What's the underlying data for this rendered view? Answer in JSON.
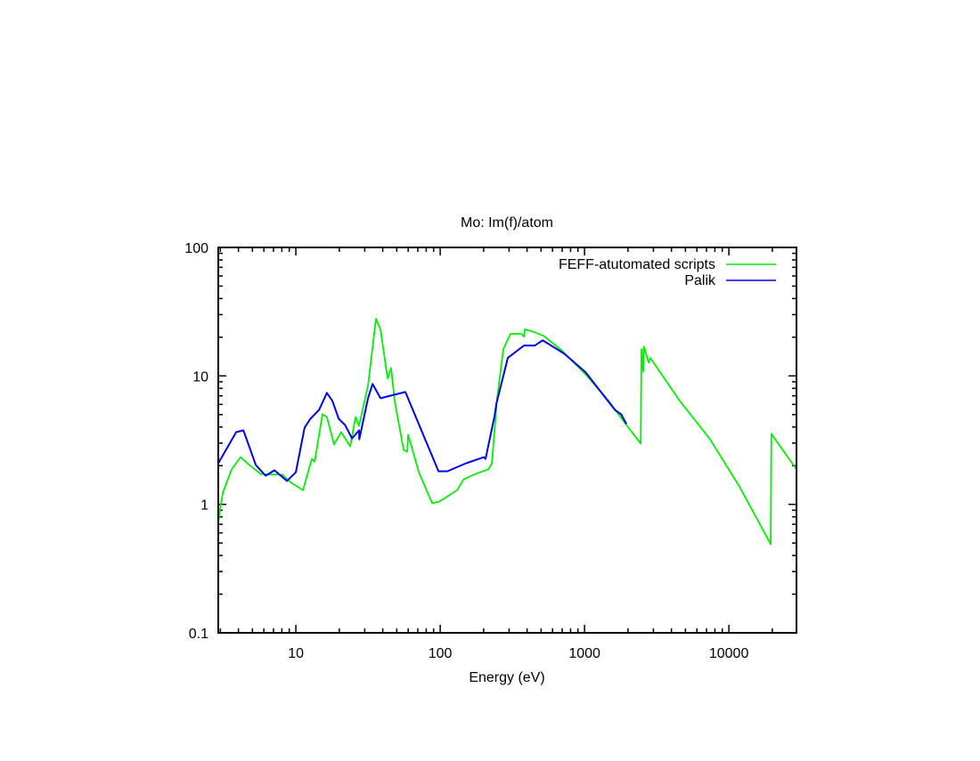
{
  "chart_data": {
    "type": "line",
    "title": "Mo: Im(f)/atom",
    "xlabel": "Energy (eV)",
    "ylabel": "",
    "xscale": "log",
    "yscale": "log",
    "xlim": [
      2.9,
      29400
    ],
    "ylim": [
      0.1,
      100
    ],
    "xticks": [
      {
        "value": 10,
        "label": "10"
      },
      {
        "value": 100,
        "label": "100"
      },
      {
        "value": 1000,
        "label": "1000"
      },
      {
        "value": 10000,
        "label": "10000"
      }
    ],
    "yticks": [
      {
        "value": 0.1,
        "label": "0.1"
      },
      {
        "value": 1,
        "label": "1"
      },
      {
        "value": 10,
        "label": "10"
      },
      {
        "value": 100,
        "label": "100"
      }
    ],
    "grid": false,
    "legend_position": "top-right",
    "series": [
      {
        "name": "FEFF-atutomated scripts",
        "color": "#00ee00",
        "x": [
          2.9,
          3.12,
          3.59,
          4.14,
          4.77,
          5.74,
          8.07,
          9.31,
          11.2,
          12.9,
          13.5,
          15.3,
          16.4,
          18.4,
          20.6,
          23.8,
          25.9,
          27.4,
          31.6,
          35.9,
          38.6,
          43.2,
          45.7,
          48.4,
          55.8,
          59.1,
          60.0,
          71.1,
          88.0,
          98.6,
          131,
          145,
          174,
          215,
          228,
          248,
          274,
          307,
          365,
          380,
          385,
          432,
          520,
          691,
          1015,
          1468,
          1950,
          2450,
          2480,
          2550,
          2580,
          2780,
          2860,
          4570,
          7410,
          11900,
          19500,
          19700,
          29400
        ],
        "y": [
          0.74,
          1.23,
          1.87,
          2.33,
          2.02,
          1.72,
          1.7,
          1.47,
          1.29,
          2.26,
          2.15,
          5.03,
          4.79,
          2.92,
          3.65,
          2.83,
          4.79,
          4.08,
          8.39,
          27.8,
          23.0,
          9.53,
          11.5,
          6.39,
          2.65,
          2.57,
          3.48,
          1.78,
          1.02,
          1.05,
          1.29,
          1.56,
          1.72,
          1.87,
          2.09,
          6.7,
          16.2,
          21.2,
          21.2,
          20.2,
          23.0,
          22.3,
          20.5,
          15.9,
          10.3,
          6.39,
          4.15,
          2.97,
          16.2,
          10.8,
          16.9,
          12.7,
          13.8,
          6.39,
          3.21,
          1.36,
          0.49,
          3.54,
          1.87
        ]
      },
      {
        "name": "Palik",
        "color": "#0000ee",
        "x": [
          2.9,
          3.86,
          4.33,
          5.28,
          6.17,
          7.11,
          8.67,
          10,
          11.5,
          12.6,
          14.5,
          16.4,
          17.9,
          19.8,
          21.9,
          24.5,
          27.4,
          27.5,
          31.6,
          34.0,
          38.6,
          57.4,
          97.3,
          112,
          151,
          201,
          206,
          238,
          245,
          294,
          380,
          451,
          513,
          722,
          1015,
          1622,
          1792,
          1950
        ],
        "y": [
          2.09,
          3.65,
          3.77,
          2.02,
          1.67,
          1.84,
          1.52,
          1.78,
          3.96,
          4.64,
          5.45,
          7.38,
          6.39,
          4.64,
          4.15,
          3.26,
          3.77,
          3.21,
          6.7,
          8.66,
          6.7,
          7.5,
          1.81,
          1.81,
          2.09,
          2.33,
          2.26,
          4.87,
          6.09,
          13.8,
          17.2,
          17.2,
          18.9,
          14.9,
          10.7,
          5.45,
          5.03,
          4.22
        ]
      }
    ]
  }
}
